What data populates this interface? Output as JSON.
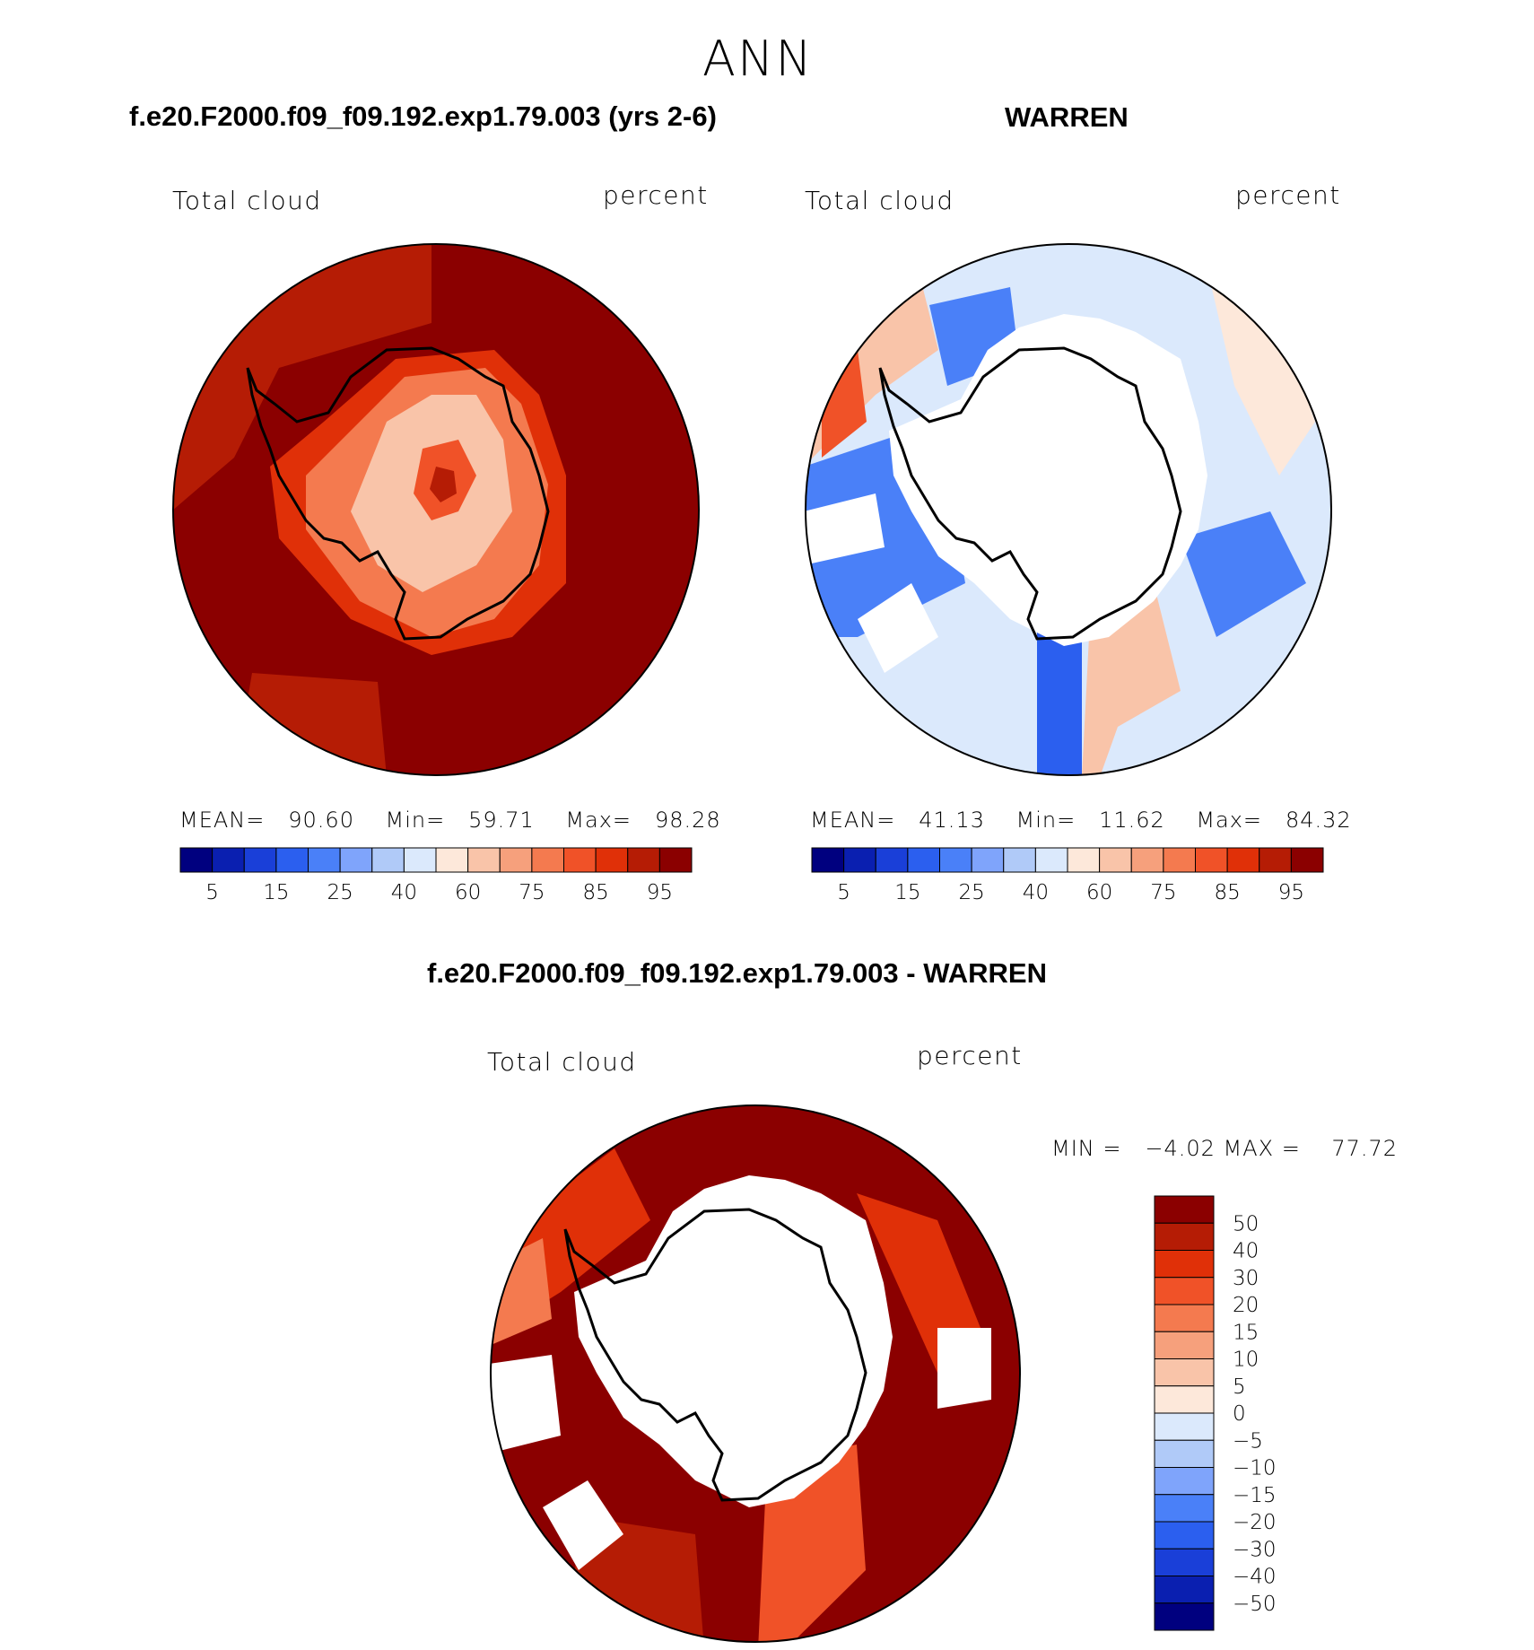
{
  "main_title": "ANN",
  "panels": [
    {
      "title": "f.e20.F2000.f09_f09.192.exp1.79.003 (yrs 2-6)",
      "left_label": "Total cloud",
      "right_label": "percent",
      "stats": {
        "mean_label": "MEAN=",
        "mean": "90.60",
        "min_label": "Min=",
        "min": "59.71",
        "max_label": "Max=",
        "max": "98.28"
      }
    },
    {
      "title": "WARREN",
      "left_label": "Total cloud",
      "right_label": "percent",
      "stats": {
        "mean_label": "MEAN=",
        "mean": "41.13",
        "min_label": "Min=",
        "min": "11.62",
        "max_label": "Max=",
        "max": "84.32"
      }
    },
    {
      "title": "f.e20.F2000.f09_f09.192.exp1.79.003 - WARREN",
      "left_label": "Total cloud",
      "right_label": "percent",
      "stats_text": "MIN =   −4.02 MAX =    77.72"
    }
  ],
  "colorbar_top": {
    "colors": [
      "#00007f",
      "#0a1fb0",
      "#1a3fd8",
      "#2b5fef",
      "#4a80f8",
      "#7fa4fb",
      "#b0caf8",
      "#dbe9fc",
      "#fde8da",
      "#f9c4a9",
      "#f6a07c",
      "#f47a4f",
      "#f05228",
      "#e03008",
      "#b51c05",
      "#8b0000"
    ],
    "tick_labels": [
      "5",
      "15",
      "25",
      "40",
      "60",
      "75",
      "85",
      "95"
    ]
  },
  "colorbar_diff": {
    "colors": [
      "#8b0000",
      "#b51c05",
      "#e03008",
      "#f05228",
      "#f47a4f",
      "#f6a07c",
      "#f9c4a9",
      "#fde8da",
      "#dbe9fc",
      "#b0caf8",
      "#7fa4fb",
      "#4a80f8",
      "#2b5fef",
      "#1a3fd8",
      "#0a1fb0",
      "#00007f"
    ],
    "tick_labels": [
      "50",
      "40",
      "30",
      "20",
      "15",
      "10",
      "5",
      "0",
      "−5",
      "−10",
      "−15",
      "−20",
      "−30",
      "−40",
      "−50"
    ]
  }
}
